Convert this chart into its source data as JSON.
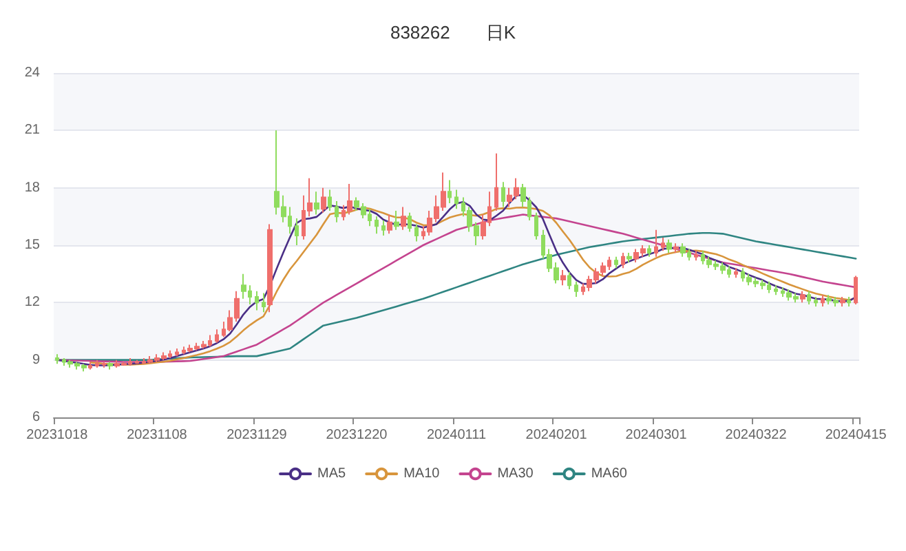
{
  "chart_data": {
    "type": "candlestick",
    "title": "838262　　日K",
    "categories": [
      "20231018",
      null,
      null,
      null,
      null,
      null,
      null,
      null,
      null,
      null,
      null,
      null,
      null,
      null,
      null,
      "20231108",
      null,
      null,
      null,
      null,
      null,
      null,
      null,
      null,
      null,
      null,
      null,
      null,
      null,
      null,
      "20231129",
      null,
      null,
      null,
      null,
      null,
      null,
      null,
      null,
      null,
      null,
      null,
      null,
      null,
      null,
      "20231220",
      null,
      null,
      null,
      null,
      null,
      null,
      null,
      null,
      null,
      null,
      null,
      null,
      null,
      null,
      "20240111",
      null,
      null,
      null,
      null,
      null,
      null,
      null,
      null,
      null,
      null,
      null,
      null,
      null,
      null,
      "20240201",
      null,
      null,
      null,
      null,
      null,
      null,
      null,
      null,
      null,
      null,
      null,
      null,
      null,
      null,
      "20240301",
      null,
      null,
      null,
      null,
      null,
      null,
      null,
      null,
      null,
      null,
      null,
      null,
      null,
      null,
      "20240322",
      null,
      null,
      null,
      null,
      null,
      null,
      null,
      null,
      null,
      null,
      null,
      null,
      null,
      null,
      "20240415"
    ],
    "ohlc": [
      [
        9.1,
        9.3,
        8.8,
        9.0
      ],
      [
        9.0,
        9.1,
        8.7,
        8.9
      ],
      [
        8.9,
        9.0,
        8.6,
        8.8
      ],
      [
        8.8,
        8.9,
        8.5,
        8.7
      ],
      [
        8.7,
        8.8,
        8.4,
        8.6
      ],
      [
        8.6,
        8.9,
        8.5,
        8.7
      ],
      [
        8.7,
        9.0,
        8.6,
        8.8
      ],
      [
        8.75,
        8.9,
        8.6,
        8.8
      ],
      [
        8.8,
        8.9,
        8.5,
        8.7
      ],
      [
        8.7,
        9.0,
        8.6,
        8.8
      ],
      [
        8.75,
        8.9,
        8.7,
        8.8
      ],
      [
        8.8,
        9.1,
        8.7,
        8.9
      ],
      [
        8.85,
        9.0,
        8.8,
        8.9
      ],
      [
        8.85,
        9.1,
        8.8,
        8.9
      ],
      [
        8.9,
        9.2,
        8.8,
        9.0
      ],
      [
        9.0,
        9.3,
        8.9,
        9.1
      ],
      [
        9.1,
        9.4,
        9.0,
        9.2
      ],
      [
        9.2,
        9.5,
        9.1,
        9.3
      ],
      [
        9.3,
        9.6,
        9.2,
        9.4
      ],
      [
        9.4,
        9.7,
        9.3,
        9.5
      ],
      [
        9.5,
        9.8,
        9.4,
        9.6
      ],
      [
        9.6,
        9.9,
        9.5,
        9.7
      ],
      [
        9.7,
        10.0,
        9.6,
        9.8
      ],
      [
        9.8,
        10.3,
        9.7,
        10.0
      ],
      [
        10.0,
        10.6,
        9.9,
        10.3
      ],
      [
        10.3,
        11.0,
        10.2,
        10.6
      ],
      [
        10.6,
        11.6,
        10.5,
        11.2
      ],
      [
        11.2,
        12.6,
        11.0,
        12.2
      ],
      [
        12.9,
        13.5,
        12.2,
        12.6
      ],
      [
        12.6,
        12.9,
        11.9,
        12.3
      ],
      [
        12.3,
        12.6,
        11.6,
        12.0
      ],
      [
        12.0,
        12.5,
        11.5,
        11.8
      ],
      [
        11.9,
        16.1,
        11.5,
        15.8
      ],
      [
        17.8,
        21.0,
        16.6,
        17.0
      ],
      [
        17.0,
        17.6,
        16.2,
        16.5
      ],
      [
        16.5,
        17.0,
        15.6,
        16.0
      ],
      [
        16.0,
        16.4,
        15.0,
        15.5
      ],
      [
        15.5,
        17.6,
        15.3,
        16.8
      ],
      [
        16.8,
        18.5,
        16.5,
        17.2
      ],
      [
        17.2,
        17.8,
        16.6,
        16.9
      ],
      [
        16.9,
        18.0,
        16.7,
        17.5
      ],
      [
        17.5,
        17.9,
        16.8,
        17.0
      ],
      [
        17.0,
        17.3,
        16.2,
        16.5
      ],
      [
        16.5,
        17.1,
        16.3,
        16.8
      ],
      [
        16.8,
        18.2,
        16.6,
        17.3
      ],
      [
        17.3,
        17.5,
        16.8,
        17.0
      ],
      [
        17.0,
        17.2,
        16.4,
        16.6
      ],
      [
        16.6,
        16.9,
        16.0,
        16.3
      ],
      [
        16.3,
        16.5,
        15.6,
        16.0
      ],
      [
        16.0,
        16.3,
        15.5,
        15.8
      ],
      [
        15.8,
        16.6,
        15.6,
        16.2
      ],
      [
        16.2,
        16.8,
        15.8,
        16.0
      ],
      [
        16.0,
        17.0,
        15.8,
        16.5
      ],
      [
        16.5,
        16.7,
        15.7,
        15.9
      ],
      [
        15.9,
        16.1,
        15.2,
        15.5
      ],
      [
        15.5,
        16.0,
        15.3,
        15.7
      ],
      [
        15.7,
        16.8,
        15.5,
        16.4
      ],
      [
        16.4,
        17.6,
        16.2,
        17.0
      ],
      [
        17.0,
        18.8,
        16.8,
        17.8
      ],
      [
        17.8,
        18.4,
        17.2,
        17.5
      ],
      [
        17.5,
        17.9,
        16.9,
        17.2
      ],
      [
        17.2,
        17.5,
        16.5,
        16.8
      ],
      [
        16.8,
        17.0,
        15.7,
        16.0
      ],
      [
        16.0,
        16.2,
        15.0,
        15.5
      ],
      [
        15.5,
        16.6,
        15.3,
        16.2
      ],
      [
        16.2,
        17.8,
        16.0,
        17.0
      ],
      [
        17.0,
        19.8,
        16.8,
        18.0
      ],
      [
        18.0,
        18.3,
        17.0,
        17.3
      ],
      [
        17.3,
        18.0,
        17.0,
        17.6
      ],
      [
        17.6,
        18.5,
        17.4,
        18.0
      ],
      [
        18.0,
        18.2,
        17.0,
        17.3
      ],
      [
        17.3,
        17.5,
        16.3,
        16.5
      ],
      [
        16.5,
        16.7,
        15.3,
        15.5
      ],
      [
        15.5,
        15.8,
        14.3,
        14.5
      ],
      [
        14.5,
        14.8,
        13.6,
        13.8
      ],
      [
        13.8,
        14.1,
        13.0,
        13.2
      ],
      [
        13.2,
        13.7,
        12.9,
        13.4
      ],
      [
        13.4,
        13.6,
        12.7,
        12.9
      ],
      [
        12.9,
        13.1,
        12.3,
        12.6
      ],
      [
        12.6,
        13.0,
        12.4,
        12.8
      ],
      [
        12.8,
        13.4,
        12.6,
        13.2
      ],
      [
        13.2,
        13.8,
        13.0,
        13.6
      ],
      [
        13.6,
        14.1,
        13.4,
        13.9
      ],
      [
        13.9,
        14.4,
        13.7,
        14.2
      ],
      [
        14.2,
        14.4,
        13.8,
        14.0
      ],
      [
        14.0,
        14.6,
        13.8,
        14.4
      ],
      [
        14.4,
        14.6,
        14.1,
        14.3
      ],
      [
        14.3,
        14.8,
        14.1,
        14.6
      ],
      [
        14.6,
        15.0,
        14.4,
        14.8
      ],
      [
        14.8,
        15.0,
        14.4,
        14.6
      ],
      [
        14.6,
        15.8,
        14.4,
        14.9
      ],
      [
        14.9,
        15.4,
        14.7,
        15.1
      ],
      [
        15.1,
        15.3,
        14.6,
        14.8
      ],
      [
        14.8,
        15.1,
        14.6,
        14.9
      ],
      [
        14.9,
        15.1,
        14.4,
        14.6
      ],
      [
        14.6,
        14.8,
        14.2,
        14.4
      ],
      [
        14.4,
        14.7,
        14.2,
        14.5
      ],
      [
        14.5,
        14.7,
        14.0,
        14.2
      ],
      [
        14.2,
        14.4,
        13.8,
        14.0
      ],
      [
        14.0,
        14.2,
        13.7,
        13.9
      ],
      [
        13.9,
        14.1,
        13.5,
        13.7
      ],
      [
        13.7,
        13.9,
        13.3,
        13.5
      ],
      [
        13.5,
        13.8,
        13.3,
        13.6
      ],
      [
        13.6,
        13.8,
        13.1,
        13.3
      ],
      [
        13.3,
        13.5,
        12.9,
        13.1
      ],
      [
        13.1,
        13.3,
        12.8,
        13.0
      ],
      [
        13.0,
        13.2,
        12.7,
        12.9
      ],
      [
        12.9,
        13.1,
        12.5,
        12.7
      ],
      [
        12.7,
        12.9,
        12.4,
        12.6
      ],
      [
        12.6,
        12.8,
        12.3,
        12.5
      ],
      [
        12.5,
        12.7,
        12.1,
        12.3
      ],
      [
        12.3,
        12.5,
        12.0,
        12.2
      ],
      [
        12.2,
        12.6,
        12.0,
        12.4
      ],
      [
        12.4,
        12.6,
        11.9,
        12.1
      ],
      [
        12.1,
        12.3,
        11.8,
        12.0
      ],
      [
        12.0,
        12.4,
        11.8,
        12.2
      ],
      [
        12.2,
        12.4,
        11.9,
        12.1
      ],
      [
        12.1,
        12.3,
        11.8,
        12.0
      ],
      [
        12.0,
        12.3,
        11.8,
        12.1
      ],
      [
        12.1,
        12.3,
        11.8,
        12.0
      ],
      [
        12.0,
        13.4,
        11.9,
        13.3
      ]
    ],
    "colors": [
      "#8fdc5e",
      "#8fdc5e",
      "#8fdc5e",
      "#8fdc5e",
      "#8fdc5e",
      "#ef6f6c",
      "#ef6f6c",
      "#ef6f6c",
      "#8fdc5e",
      "#ef6f6c",
      "#ef6f6c",
      "#ef6f6c",
      "#ef6f6c",
      "#ef6f6c",
      "#ef6f6c",
      "#ef6f6c",
      "#ef6f6c",
      "#ef6f6c",
      "#ef6f6c",
      "#ef6f6c",
      "#ef6f6c",
      "#ef6f6c",
      "#ef6f6c",
      "#ef6f6c",
      "#ef6f6c",
      "#ef6f6c",
      "#ef6f6c",
      "#ef6f6c",
      "#8fdc5e",
      "#8fdc5e",
      "#8fdc5e",
      "#8fdc5e",
      "#ef6f6c",
      "#8fdc5e",
      "#8fdc5e",
      "#8fdc5e",
      "#8fdc5e",
      "#ef6f6c",
      "#ef6f6c",
      "#8fdc5e",
      "#ef6f6c",
      "#8fdc5e",
      "#8fdc5e",
      "#ef6f6c",
      "#ef6f6c",
      "#8fdc5e",
      "#8fdc5e",
      "#8fdc5e",
      "#8fdc5e",
      "#8fdc5e",
      "#ef6f6c",
      "#8fdc5e",
      "#ef6f6c",
      "#8fdc5e",
      "#8fdc5e",
      "#ef6f6c",
      "#ef6f6c",
      "#ef6f6c",
      "#ef6f6c",
      "#8fdc5e",
      "#8fdc5e",
      "#8fdc5e",
      "#8fdc5e",
      "#8fdc5e",
      "#ef6f6c",
      "#ef6f6c",
      "#ef6f6c",
      "#8fdc5e",
      "#ef6f6c",
      "#ef6f6c",
      "#8fdc5e",
      "#8fdc5e",
      "#8fdc5e",
      "#8fdc5e",
      "#8fdc5e",
      "#8fdc5e",
      "#ef6f6c",
      "#8fdc5e",
      "#8fdc5e",
      "#ef6f6c",
      "#ef6f6c",
      "#ef6f6c",
      "#ef6f6c",
      "#ef6f6c",
      "#8fdc5e",
      "#ef6f6c",
      "#8fdc5e",
      "#ef6f6c",
      "#ef6f6c",
      "#8fdc5e",
      "#ef6f6c",
      "#ef6f6c",
      "#8fdc5e",
      "#ef6f6c",
      "#8fdc5e",
      "#8fdc5e",
      "#ef6f6c",
      "#8fdc5e",
      "#8fdc5e",
      "#8fdc5e",
      "#8fdc5e",
      "#8fdc5e",
      "#ef6f6c",
      "#8fdc5e",
      "#8fdc5e",
      "#8fdc5e",
      "#8fdc5e",
      "#8fdc5e",
      "#8fdc5e",
      "#8fdc5e",
      "#8fdc5e",
      "#8fdc5e",
      "#ef6f6c",
      "#8fdc5e",
      "#8fdc5e",
      "#ef6f6c",
      "#8fdc5e",
      "#8fdc5e",
      "#ef6f6c",
      "#8fdc5e",
      "#ef6f6c"
    ],
    "series": [
      {
        "type": "line",
        "name": "MA5",
        "color": "#4a2f86",
        "values": [
          9.0,
          8.95,
          8.9,
          8.85,
          8.8,
          8.74,
          8.72,
          8.72,
          8.72,
          8.76,
          8.78,
          8.8,
          8.82,
          8.86,
          8.9,
          8.96,
          9.02,
          9.1,
          9.2,
          9.3,
          9.4,
          9.5,
          9.6,
          9.72,
          9.88,
          10.08,
          10.38,
          10.86,
          11.38,
          11.78,
          12.06,
          12.18,
          12.9,
          13.78,
          14.62,
          15.42,
          16.16,
          16.36,
          16.4,
          16.48,
          16.78,
          17.08,
          17.02,
          16.94,
          17.02,
          16.92,
          16.84,
          16.8,
          16.64,
          16.34,
          16.18,
          16.06,
          16.1,
          16.08,
          16.02,
          15.92,
          16.0,
          16.1,
          16.48,
          16.88,
          17.18,
          17.26,
          17.06,
          16.6,
          16.34,
          16.3,
          16.54,
          16.8,
          17.22,
          17.58,
          17.64,
          17.34,
          16.98,
          16.36,
          15.52,
          14.7,
          14.08,
          13.56,
          13.18,
          12.98,
          12.98,
          13.02,
          13.22,
          13.54,
          13.78,
          14.02,
          14.16,
          14.3,
          14.42,
          14.54,
          14.64,
          14.8,
          14.84,
          14.86,
          14.86,
          14.76,
          14.64,
          14.52,
          14.34,
          14.2,
          14.06,
          13.86,
          13.74,
          13.6,
          13.44,
          13.3,
          13.18,
          13.0,
          12.86,
          12.74,
          12.6,
          12.46,
          12.4,
          12.3,
          12.2,
          12.18,
          12.16,
          12.08,
          12.08,
          12.08,
          12.3
        ]
      },
      {
        "type": "line",
        "name": "MA10",
        "color": "#d8953c",
        "values": [
          null,
          null,
          null,
          null,
          null,
          8.87,
          8.84,
          8.81,
          8.79,
          8.78,
          8.76,
          8.76,
          8.77,
          8.79,
          8.83,
          8.87,
          8.91,
          8.96,
          9.03,
          9.1,
          9.18,
          9.26,
          9.35,
          9.46,
          9.59,
          9.74,
          9.94,
          10.23,
          10.55,
          10.83,
          11.07,
          11.28,
          11.88,
          12.58,
          13.2,
          13.74,
          14.17,
          14.63,
          15.09,
          15.55,
          16.1,
          16.62,
          16.69,
          16.67,
          16.75,
          16.85,
          16.96,
          16.91,
          16.79,
          16.68,
          16.55,
          16.45,
          16.45,
          16.36,
          16.18,
          16.05,
          16.03,
          16.1,
          16.28,
          16.45,
          16.55,
          16.63,
          16.58,
          16.54,
          16.61,
          16.74,
          16.9,
          16.93,
          16.91,
          16.96,
          16.97,
          16.94,
          16.89,
          16.79,
          16.55,
          16.17,
          15.71,
          15.27,
          14.77,
          14.25,
          13.84,
          13.55,
          13.39,
          13.36,
          13.38,
          13.5,
          13.59,
          13.76,
          13.98,
          14.16,
          14.33,
          14.48,
          14.57,
          14.64,
          14.7,
          14.7,
          14.72,
          14.68,
          14.6,
          14.53,
          14.41,
          14.25,
          14.13,
          13.97,
          13.82,
          13.68,
          13.52,
          13.37,
          13.23,
          13.09,
          12.95,
          12.82,
          12.7,
          12.58,
          12.47,
          12.39,
          12.31,
          12.24,
          12.19,
          12.14,
          12.24
        ]
      },
      {
        "type": "line",
        "name": "MA30",
        "color": "#c4448f",
        "values": [
          9.0,
          8.99,
          8.98,
          8.97,
          8.96,
          8.95,
          8.94,
          8.93,
          8.92,
          8.91,
          8.9,
          8.9,
          8.9,
          8.9,
          8.9,
          8.9,
          8.91,
          8.92,
          8.93,
          8.94,
          8.95,
          9.0,
          9.05,
          9.1,
          9.15,
          9.2,
          9.32,
          9.44,
          9.56,
          9.68,
          9.8,
          10.0,
          10.2,
          10.4,
          10.6,
          10.8,
          11.04,
          11.28,
          11.52,
          11.76,
          12.0,
          12.2,
          12.4,
          12.6,
          12.8,
          13.0,
          13.2,
          13.4,
          13.6,
          13.8,
          14.0,
          14.2,
          14.4,
          14.6,
          14.8,
          15.0,
          15.16,
          15.32,
          15.48,
          15.64,
          15.8,
          15.9,
          16.0,
          16.1,
          16.2,
          16.3,
          16.36,
          16.42,
          16.48,
          16.54,
          16.6,
          16.56,
          16.52,
          16.48,
          16.44,
          16.4,
          16.32,
          16.24,
          16.16,
          16.08,
          16.0,
          15.92,
          15.84,
          15.76,
          15.68,
          15.6,
          15.5,
          15.4,
          15.3,
          15.2,
          15.1,
          15.0,
          14.9,
          14.8,
          14.7,
          14.6,
          14.5,
          14.4,
          14.3,
          14.2,
          14.1,
          14.04,
          13.98,
          13.92,
          13.86,
          13.8,
          13.74,
          13.68,
          13.62,
          13.56,
          13.5,
          13.42,
          13.34,
          13.26,
          13.18,
          13.1,
          13.04,
          12.98,
          12.92,
          12.86,
          12.8
        ]
      },
      {
        "type": "line",
        "name": "MA60",
        "color": "#2f8582",
        "values": [
          9.0,
          9.0,
          9.0,
          9.0,
          9.0,
          9.0,
          9.0,
          9.0,
          9.0,
          9.0,
          9.0,
          9.0,
          9.0,
          9.0,
          9.0,
          9.03,
          9.05,
          9.07,
          9.09,
          9.11,
          9.13,
          9.14,
          9.15,
          9.16,
          9.17,
          9.18,
          9.19,
          9.2,
          9.2,
          9.2,
          9.2,
          9.28,
          9.36,
          9.44,
          9.52,
          9.6,
          9.84,
          10.08,
          10.32,
          10.56,
          10.8,
          10.88,
          10.96,
          11.04,
          11.12,
          11.2,
          11.3,
          11.4,
          11.5,
          11.6,
          11.7,
          11.8,
          11.9,
          12.0,
          12.1,
          12.2,
          12.32,
          12.44,
          12.56,
          12.68,
          12.8,
          12.92,
          13.04,
          13.16,
          13.28,
          13.4,
          13.52,
          13.64,
          13.76,
          13.88,
          14.0,
          14.1,
          14.2,
          14.3,
          14.4,
          14.5,
          14.58,
          14.66,
          14.74,
          14.82,
          14.9,
          14.96,
          15.02,
          15.08,
          15.14,
          15.2,
          15.24,
          15.28,
          15.32,
          15.36,
          15.4,
          15.44,
          15.48,
          15.52,
          15.56,
          15.6,
          15.62,
          15.64,
          15.64,
          15.62,
          15.6,
          15.52,
          15.44,
          15.36,
          15.28,
          15.2,
          15.14,
          15.08,
          15.02,
          14.96,
          14.9,
          14.84,
          14.78,
          14.72,
          14.66,
          14.6,
          14.54,
          14.48,
          14.42,
          14.36,
          14.3
        ]
      }
    ],
    "ylim": [
      6,
      24
    ],
    "yticks": [
      6,
      9,
      12,
      15,
      18,
      21,
      24
    ],
    "grid": "y",
    "legend": "bottom",
    "marker": "none"
  }
}
